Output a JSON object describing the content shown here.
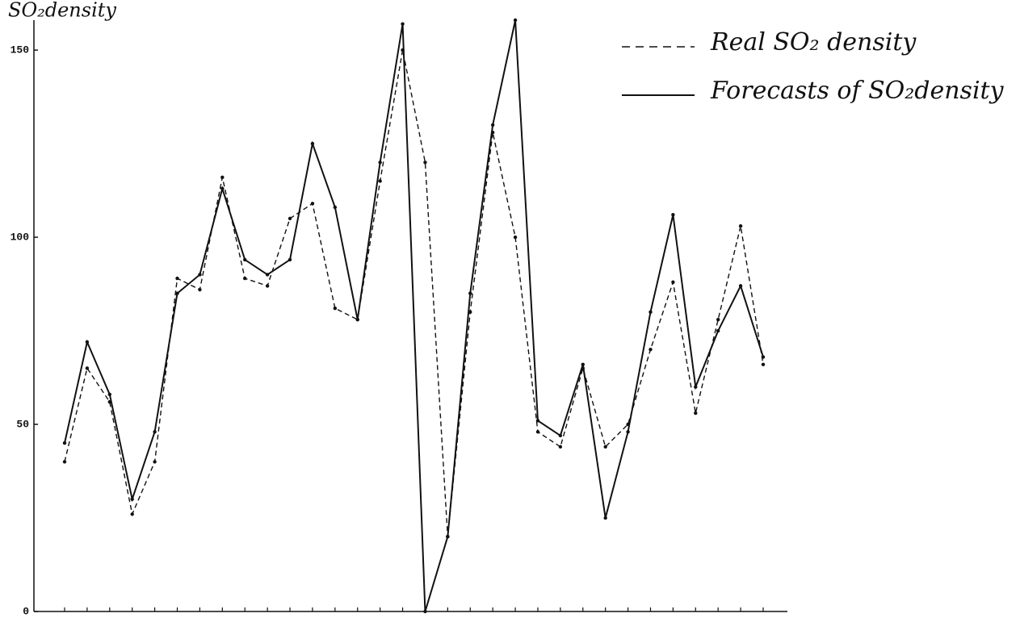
{
  "chart_data": {
    "type": "line",
    "y_label": "SO₂density",
    "categories": [
      null,
      null,
      null,
      null,
      null,
      null,
      null,
      null,
      null,
      null,
      null,
      null,
      null,
      null,
      null,
      null,
      null,
      null,
      null,
      null,
      null,
      null,
      null,
      null,
      null,
      null,
      null,
      null,
      null,
      null,
      null,
      null
    ],
    "series": [
      {
        "name": "Real SO₂ density",
        "color": "#111111",
        "style": "dashed",
        "values": [
          40,
          65,
          56,
          26,
          40,
          89,
          86,
          116,
          89,
          87,
          105,
          109,
          81,
          78,
          115,
          150,
          120,
          20,
          80,
          128,
          100,
          48,
          44,
          65,
          44,
          50,
          70,
          88,
          53,
          78,
          103,
          66
        ]
      },
      {
        "name": "Forecasts of SO₂density",
        "color": "#111111",
        "style": "solid",
        "values": [
          45,
          72,
          58,
          30,
          48,
          85,
          90,
          113,
          94,
          90,
          94,
          125,
          108,
          78,
          120,
          157,
          0,
          20,
          85,
          130,
          158,
          51,
          47,
          66,
          25,
          48,
          80,
          106,
          60,
          75,
          87,
          68
        ]
      }
    ],
    "ylim": [
      0,
      158
    ],
    "yticks": [
      0,
      50,
      100,
      150
    ],
    "grid": false,
    "legend": "top-right"
  }
}
